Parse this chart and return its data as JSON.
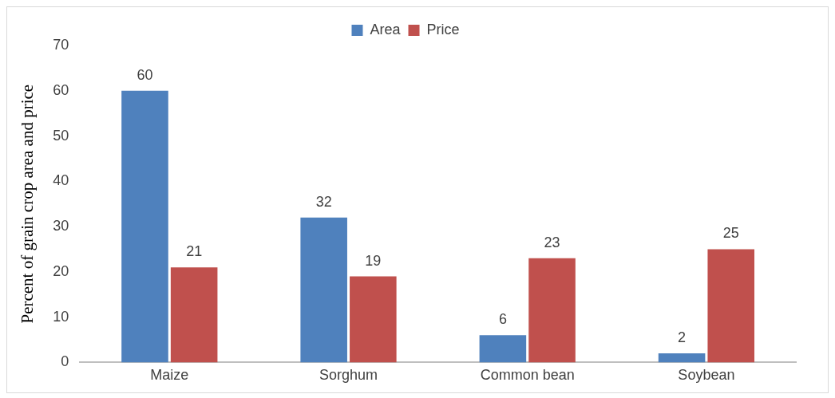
{
  "chart_data": {
    "type": "bar",
    "ylabel": "Percent of grain crop area and price",
    "categories": [
      "Maize",
      "Sorghum",
      "Common bean",
      "Soybean"
    ],
    "series": [
      {
        "name": "Area",
        "color": "#4f81bd",
        "values": [
          60,
          32,
          6,
          2
        ]
      },
      {
        "name": "Price",
        "color": "#c0504d",
        "values": [
          21,
          19,
          23,
          25
        ]
      }
    ],
    "ylim": [
      0,
      70
    ],
    "yticks": [
      0,
      10,
      20,
      30,
      40,
      50,
      60,
      70
    ],
    "grid": false,
    "legend": "top",
    "data_labels": true
  }
}
